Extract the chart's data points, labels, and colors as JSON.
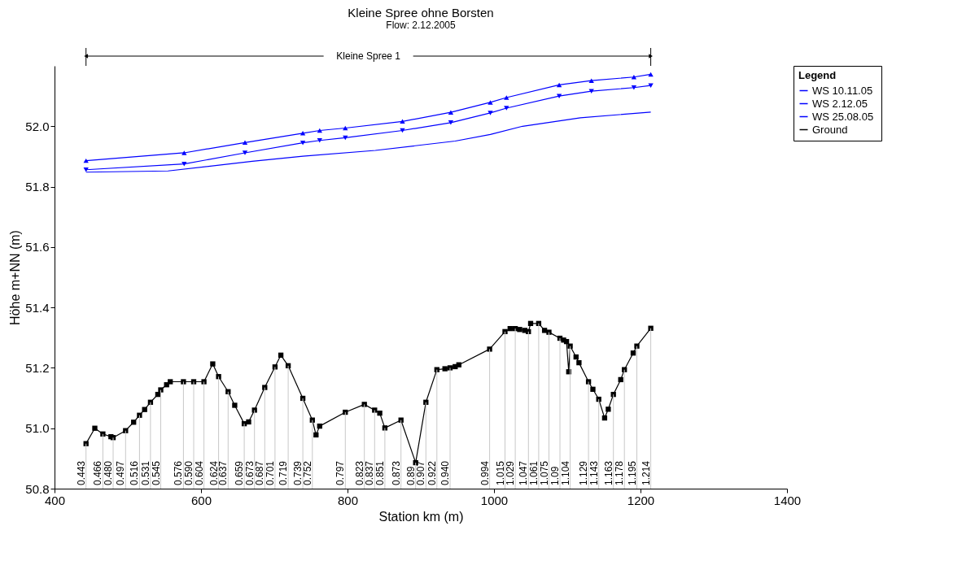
{
  "chart_data": {
    "type": "line",
    "title": "Kleine Spree ohne Borsten",
    "subtitle": "Flow: 2.12.2005",
    "xlabel": "Station km (m)",
    "ylabel": "Höhe m+NN (m)",
    "legend_title": "Legend",
    "legend": "top right",
    "grid": false,
    "xlim": [
      400,
      1400
    ],
    "xticks": [
      400,
      600,
      800,
      1000,
      1200,
      1400
    ],
    "ylim": [
      50.8,
      52.2
    ],
    "yticks": [
      {
        "value": 50.8,
        "label": "50.8"
      },
      {
        "value": 51,
        "label": "51.0"
      },
      {
        "value": 51.2,
        "label": "51.2"
      },
      {
        "value": 51.4,
        "label": "51.4"
      },
      {
        "value": 51.6,
        "label": "51.6"
      },
      {
        "value": 51.8,
        "label": "51.8"
      },
      {
        "value": 52,
        "label": "52.0"
      }
    ],
    "series": [
      {
        "name": "WS  10.11.05",
        "color": "#0000ff",
        "marker": "triangle",
        "x": [
          443,
          577,
          660,
          739,
          762,
          797,
          875,
          941,
          995,
          1017,
          1089,
          1133,
          1191,
          1214
        ],
        "values": [
          51.886,
          51.912,
          51.946,
          51.977,
          51.986,
          51.994,
          52.016,
          52.046,
          52.079,
          52.095,
          52.137,
          52.151,
          52.163,
          52.172
        ]
      },
      {
        "name": "WS  2.12.05",
        "color": "#0000ff",
        "marker": "triangle-down",
        "x": [
          443,
          577,
          660,
          739,
          762,
          797,
          875,
          941,
          995,
          1017,
          1089,
          1133,
          1191,
          1214
        ],
        "values": [
          51.856,
          51.875,
          51.912,
          51.945,
          51.953,
          51.962,
          51.986,
          52.012,
          52.044,
          52.06,
          52.1,
          52.116,
          52.128,
          52.135
        ]
      },
      {
        "name": "WS  25.08.05",
        "color": "#0000ff",
        "marker": "none",
        "x": [
          443,
          555,
          670,
          739,
          838,
          947,
          995,
          1039,
          1118,
          1214
        ],
        "values": [
          51.848,
          51.852,
          51.884,
          51.901,
          51.92,
          51.951,
          51.973,
          52.0,
          52.028,
          52.047
        ]
      },
      {
        "name": "Ground",
        "color": "#000000",
        "marker": "square",
        "x": [
          443,
          455,
          466,
          477,
          480,
          497,
          508,
          516,
          523,
          531,
          541,
          545,
          553,
          558,
          576,
          590,
          604,
          616,
          624,
          637,
          646,
          659,
          665,
          673,
          687,
          701,
          709,
          719,
          739,
          752,
          757,
          762,
          797,
          823,
          837,
          844,
          851,
          873,
          893,
          907,
          922,
          933,
          940,
          947,
          952,
          994,
          1015,
          1022,
          1029,
          1035,
          1042,
          1047,
          1050,
          1061,
          1069,
          1075,
          1090,
          1095,
          1099,
          1102,
          1104,
          1112,
          1116,
          1129,
          1135,
          1143,
          1151,
          1156,
          1163,
          1173,
          1178,
          1190,
          1195,
          1214
        ],
        "values": [
          50.949,
          51.0,
          50.981,
          50.972,
          50.969,
          50.992,
          51.02,
          51.043,
          51.062,
          51.086,
          51.112,
          51.127,
          51.144,
          51.154,
          51.154,
          51.154,
          51.154,
          51.213,
          51.171,
          51.121,
          51.076,
          51.015,
          51.021,
          51.06,
          51.135,
          51.203,
          51.242,
          51.207,
          51.099,
          51.027,
          50.978,
          51.007,
          51.053,
          51.079,
          51.06,
          51.05,
          51.001,
          51.027,
          50.886,
          51.086,
          51.194,
          51.197,
          51.2,
          51.204,
          51.21,
          51.262,
          51.32,
          51.33,
          51.33,
          51.327,
          51.324,
          51.32,
          51.347,
          51.347,
          51.324,
          51.318,
          51.298,
          51.292,
          51.287,
          51.187,
          51.272,
          51.236,
          51.217,
          51.154,
          51.129,
          51.096,
          51.034,
          51.063,
          51.112,
          51.161,
          51.194,
          51.249,
          51.272,
          51.331
        ]
      }
    ],
    "annotations": [
      "Kleine Spree 1",
      {
        "text": "0.443",
        "x": 443,
        "y": 50.949
      },
      {
        "text": "0.466",
        "x": 466,
        "y": 50.981
      },
      {
        "text": "0.480",
        "x": 480,
        "y": 50.969
      },
      {
        "text": "0.497",
        "x": 497,
        "y": 50.992
      },
      {
        "text": "0.516",
        "x": 516,
        "y": 51.043
      },
      {
        "text": "0.531",
        "x": 531,
        "y": 51.086
      },
      {
        "text": "0.545",
        "x": 545,
        "y": 51.127
      },
      {
        "text": "0.576",
        "x": 576,
        "y": 51.154
      },
      {
        "text": "0.590",
        "x": 590,
        "y": 51.154
      },
      {
        "text": "0.604",
        "x": 604,
        "y": 51.154
      },
      {
        "text": "0.624",
        "x": 624,
        "y": 51.171
      },
      {
        "text": "0.637",
        "x": 637,
        "y": 51.121
      },
      {
        "text": "0.659",
        "x": 659,
        "y": 51.015
      },
      {
        "text": "0.673",
        "x": 673,
        "y": 51.06
      },
      {
        "text": "0.687",
        "x": 687,
        "y": 51.135
      },
      {
        "text": "0.701",
        "x": 701,
        "y": 51.203
      },
      {
        "text": "0.719",
        "x": 719,
        "y": 51.207
      },
      {
        "text": "0.739",
        "x": 739,
        "y": 51.099
      },
      {
        "text": "0.752",
        "x": 752,
        "y": 51.027
      },
      {
        "text": "0.797",
        "x": 797,
        "y": 51.053
      },
      {
        "text": "0.823",
        "x": 823,
        "y": 51.079
      },
      {
        "text": "0.837",
        "x": 837,
        "y": 51.06
      },
      {
        "text": "0.851",
        "x": 851,
        "y": 51.001
      },
      {
        "text": "0.873",
        "x": 873,
        "y": 51.027
      },
      {
        "text": "0.89",
        "x": 893,
        "y": 50.886
      },
      {
        "text": "0.907",
        "x": 907,
        "y": 51.086
      },
      {
        "text": "0.922",
        "x": 922,
        "y": 51.194
      },
      {
        "text": "0.940",
        "x": 940,
        "y": 51.2
      },
      {
        "text": "0.994",
        "x": 994,
        "y": 51.262
      },
      {
        "text": "1.015",
        "x": 1015,
        "y": 51.32
      },
      {
        "text": "1.029",
        "x": 1029,
        "y": 51.33
      },
      {
        "text": "1.047",
        "x": 1047,
        "y": 51.32
      },
      {
        "text": "1.061",
        "x": 1061,
        "y": 51.347
      },
      {
        "text": "1.075",
        "x": 1075,
        "y": 51.318
      },
      {
        "text": "1.09",
        "x": 1090,
        "y": 51.298
      },
      {
        "text": "1.104",
        "x": 1104,
        "y": 51.272
      },
      {
        "text": "1.129",
        "x": 1129,
        "y": 51.154
      },
      {
        "text": "1.143",
        "x": 1143,
        "y": 51.096
      },
      {
        "text": "1.163",
        "x": 1163,
        "y": 51.112
      },
      {
        "text": "1.178",
        "x": 1178,
        "y": 51.194
      },
      {
        "text": "1.195",
        "x": 1195,
        "y": 51.272
      },
      {
        "text": "1.214",
        "x": 1214,
        "y": 51.331
      }
    ]
  }
}
